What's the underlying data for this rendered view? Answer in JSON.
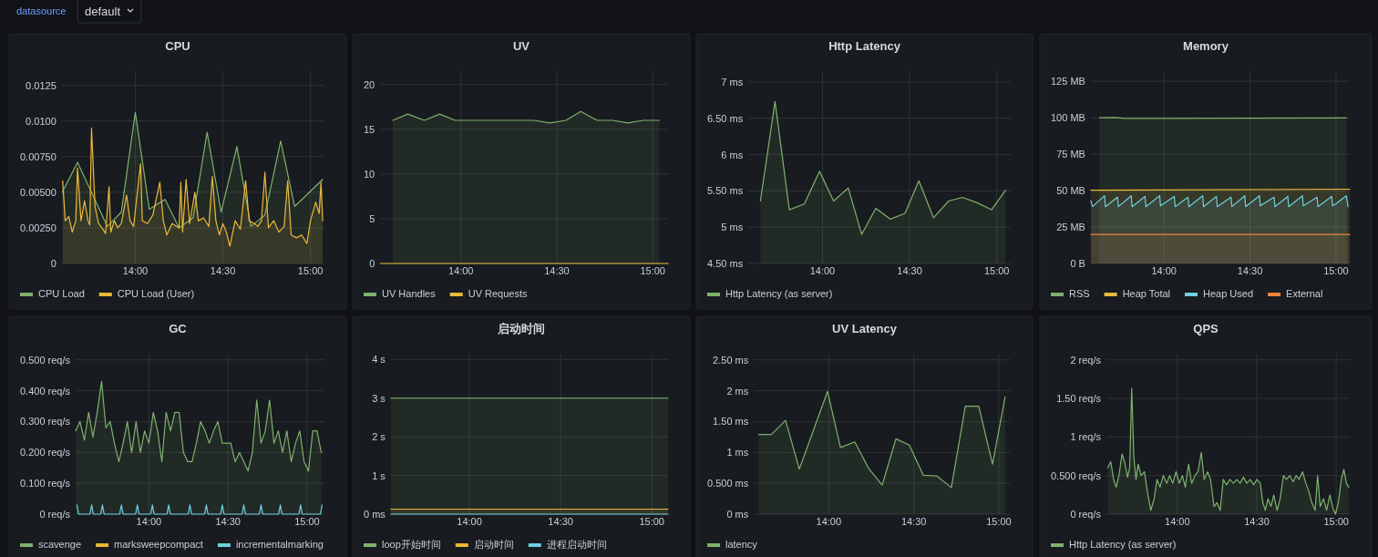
{
  "chart_data": [
    {
      "type": "other",
      "annotations": [
        "datasource",
        "default"
      ]
    },
    {
      "type": "area",
      "title": "CPU",
      "xlim": [
        13.58,
        15.08
      ],
      "ylim": [
        0,
        0.0135
      ],
      "grid": true,
      "legend": "bottom",
      "xticks": [
        {
          "value": 14,
          "label": "14:00"
        },
        {
          "value": 14.5,
          "label": "14:30"
        },
        {
          "value": 15,
          "label": "15:00"
        }
      ],
      "yticks": [
        0,
        {
          "value": 0.0025,
          "label": "0.00250"
        },
        {
          "value": 0.005,
          "label": "0.00500"
        },
        {
          "value": 0.0075,
          "label": "0.00750"
        },
        {
          "value": 0.01,
          "label": "0.0100"
        },
        0.0125
      ],
      "series": [
        {
          "name": "CPU Load",
          "color": "#7eb26d",
          "x": [
            13.583,
            13.67,
            13.84,
            13.92,
            14.0,
            14.08,
            14.17,
            14.25,
            14.33,
            14.41,
            14.49,
            14.58,
            14.66,
            14.74,
            14.83,
            14.91,
            15.07
          ],
          "values": [
            0.005,
            0.0071,
            0.0026,
            0.0036,
            0.0106,
            0.0038,
            0.0045,
            0.0025,
            0.0032,
            0.0092,
            0.0036,
            0.0082,
            0.0026,
            0.0034,
            0.0086,
            0.004,
            0.0059
          ]
        },
        {
          "name": "CPU Load (User)",
          "color": "#eab839",
          "x": [
            13.585,
            13.6,
            13.62,
            13.64,
            13.66,
            13.67,
            13.69,
            13.71,
            13.73,
            13.74,
            13.75,
            13.77,
            13.79,
            13.81,
            13.83,
            13.85,
            13.86,
            13.88,
            13.9,
            13.92,
            13.95,
            13.97,
            13.99,
            14.03,
            14.04,
            14.07,
            14.1,
            14.14,
            14.16,
            14.18,
            14.21,
            14.25,
            14.26,
            14.27,
            14.29,
            14.31,
            14.34,
            14.36,
            14.39,
            14.42,
            14.44,
            14.46,
            14.48,
            14.5,
            14.52,
            14.54,
            14.57,
            14.6,
            14.63,
            14.65,
            14.68,
            14.7,
            14.72,
            14.74,
            14.76,
            14.79,
            14.82,
            14.85,
            14.87,
            14.89,
            14.92,
            14.95,
            14.98,
            15.0,
            15.03,
            15.05,
            15.06,
            15.07
          ],
          "values": [
            0.0058,
            0.003,
            0.0033,
            0.0022,
            0.003,
            0.0067,
            0.003,
            0.0044,
            0.003,
            0.0027,
            0.0095,
            0.004,
            0.0028,
            0.0025,
            0.0021,
            0.0054,
            0.0022,
            0.003,
            0.0025,
            0.0028,
            0.0048,
            0.003,
            0.0026,
            0.007,
            0.003,
            0.0028,
            0.0034,
            0.0057,
            0.003,
            0.002,
            0.0028,
            0.0025,
            0.0057,
            0.0022,
            0.0059,
            0.0028,
            0.005,
            0.003,
            0.0032,
            0.0026,
            0.0061,
            0.003,
            0.002,
            0.0028,
            0.0022,
            0.0012,
            0.003,
            0.0024,
            0.0058,
            0.003,
            0.0028,
            0.0026,
            0.003,
            0.0064,
            0.0025,
            0.003,
            0.0022,
            0.0026,
            0.0058,
            0.002,
            0.0018,
            0.002,
            0.0014,
            0.003,
            0.0043,
            0.0035,
            0.0057,
            0.003
          ]
        }
      ]
    },
    {
      "type": "area",
      "title": "UV",
      "xlim": [
        13.58,
        15.08
      ],
      "ylim": [
        0,
        21.5
      ],
      "grid": true,
      "legend": "bottom",
      "xticks": [
        {
          "value": 14,
          "label": "14:00"
        },
        {
          "value": 14.5,
          "label": "14:30"
        },
        {
          "value": 15,
          "label": "15:00"
        }
      ],
      "yticks": [
        0,
        5,
        10,
        15,
        20
      ],
      "series": [
        {
          "name": "UV Handles",
          "color": "#7eb26d",
          "x": [
            13.645,
            13.723,
            13.81,
            13.89,
            13.97,
            14.38,
            14.465,
            14.548,
            14.625,
            14.71,
            14.79,
            14.87,
            14.95,
            15.035
          ],
          "values": [
            16.0,
            16.7,
            16.0,
            16.7,
            16.0,
            16.0,
            15.7,
            16.0,
            17.0,
            16.0,
            16.0,
            15.7,
            16.0,
            16.0
          ]
        },
        {
          "name": "UV Requests",
          "color": "#eab839",
          "type": "line",
          "x": [
            13.58,
            15.08
          ],
          "values": [
            0,
            0
          ]
        }
      ]
    },
    {
      "type": "area",
      "title": "Http Latency",
      "xlim": [
        13.575,
        15.08
      ],
      "ylim": [
        4.5,
        7.15
      ],
      "grid": true,
      "legend": "bottom",
      "xticks": [
        {
          "value": 14,
          "label": "14:00"
        },
        {
          "value": 14.5,
          "label": "14:30"
        },
        {
          "value": 15,
          "label": "15:00"
        }
      ],
      "yticks": [
        {
          "value": 4.5,
          "label": "4.50 ms"
        },
        {
          "value": 5,
          "label": "5 ms"
        },
        {
          "value": 5.5,
          "label": "5.50 ms"
        },
        {
          "value": 6,
          "label": "6 ms"
        },
        {
          "value": 6.5,
          "label": "6.50 ms"
        },
        {
          "value": 7,
          "label": "7 ms"
        }
      ],
      "series": [
        {
          "name": "Http Latency (as server)",
          "color": "#7eb26d",
          "x": [
            13.644,
            13.728,
            13.81,
            13.896,
            13.983,
            14.064,
            14.148,
            14.225,
            14.306,
            14.39,
            14.474,
            14.553,
            14.637,
            14.724,
            14.803,
            14.884,
            14.97,
            15.05
          ],
          "values": [
            5.36,
            6.73,
            5.24,
            5.32,
            5.77,
            5.36,
            5.54,
            4.9,
            5.26,
            5.11,
            5.19,
            5.64,
            5.13,
            5.36,
            5.41,
            5.34,
            5.24,
            5.51
          ]
        }
      ]
    },
    {
      "type": "area",
      "title": "Memory",
      "xlim": [
        13.575,
        15.08
      ],
      "ylim": [
        0,
        132
      ],
      "grid": true,
      "legend": "bottom",
      "xticks": [
        {
          "value": 14,
          "label": "14:00"
        },
        {
          "value": 14.5,
          "label": "14:30"
        },
        {
          "value": 15,
          "label": "15:00"
        }
      ],
      "yticks": [
        {
          "value": 0,
          "label": "0 B"
        },
        {
          "value": 25,
          "label": "25 MB"
        },
        {
          "value": 50,
          "label": "50 MB"
        },
        {
          "value": 75,
          "label": "75 MB"
        },
        {
          "value": 100,
          "label": "100 MB"
        },
        {
          "value": 125,
          "label": "125 MB"
        }
      ],
      "series": [
        {
          "name": "RSS",
          "color": "#7eb26d",
          "x": [
            13.625,
            13.72,
            13.77,
            15.06
          ],
          "values": [
            100,
            100.2,
            99.5,
            99.8
          ]
        },
        {
          "name": "Heap Total",
          "color": "#eab839",
          "x": [
            13.575,
            15.08
          ],
          "values": [
            50.3,
            51
          ]
        },
        {
          "name": "Heap Used",
          "color": "#6ed0e0",
          "x": [
            13.575,
            13.585,
            13.655,
            13.66,
            13.73,
            13.735,
            13.81,
            13.815,
            13.89,
            13.895,
            13.975,
            13.98,
            14.06,
            14.065,
            14.14,
            14.145,
            14.225,
            14.23,
            14.305,
            14.31,
            14.39,
            14.395,
            14.47,
            14.475,
            14.555,
            14.56,
            14.64,
            14.645,
            14.72,
            14.725,
            14.805,
            14.81,
            14.89,
            14.895,
            14.975,
            14.98,
            15.0,
            15.06,
            15.07
          ],
          "values": [
            43,
            39,
            46.5,
            39,
            45.5,
            39,
            46.5,
            39,
            46,
            39,
            46.5,
            39.5,
            46,
            39,
            45.5,
            39,
            46.5,
            39,
            46,
            39,
            45.5,
            39,
            46.5,
            39,
            46.5,
            39.5,
            45.5,
            39,
            46,
            39,
            46.5,
            39.5,
            45.5,
            39,
            46,
            39.5,
            41,
            46.5,
            39
          ]
        },
        {
          "name": "External",
          "color": "#ef843c",
          "x": [
            13.575,
            15.08
          ],
          "values": [
            20,
            20
          ]
        }
      ]
    },
    {
      "type": "area",
      "title": "GC",
      "xlim": [
        13.537,
        15.11
      ],
      "ylim": [
        0,
        0.52
      ],
      "grid": true,
      "legend": "bottom",
      "xticks": [
        {
          "value": 14,
          "label": "14:00"
        },
        {
          "value": 14.5,
          "label": "14:30"
        },
        {
          "value": 15,
          "label": "15:00"
        }
      ],
      "yticks": [
        {
          "value": 0,
          "label": "0 req/s"
        },
        {
          "value": 0.1,
          "label": "0.100 req/s"
        },
        {
          "value": 0.2,
          "label": "0.200 req/s"
        },
        {
          "value": 0.3,
          "label": "0.300 req/s"
        },
        {
          "value": 0.4,
          "label": "0.400 req/s"
        },
        {
          "value": 0.5,
          "label": "0.500 req/s"
        }
      ],
      "series": [
        {
          "name": "scavenge",
          "color": "#7eb26d",
          "x": [
            13.537,
            13.564,
            13.592,
            13.619,
            13.646,
            13.673,
            13.701,
            13.728,
            13.755,
            13.782,
            13.81,
            13.837,
            13.864,
            13.891,
            13.919,
            13.946,
            13.973,
            14.0,
            14.028,
            14.055,
            14.082,
            14.109,
            14.137,
            14.164,
            14.191,
            14.218,
            14.246,
            14.273,
            14.3,
            14.327,
            14.355,
            14.382,
            14.409,
            14.436,
            14.464,
            14.491,
            14.518,
            14.545,
            14.573,
            14.6,
            14.627,
            14.654,
            14.682,
            14.709,
            14.736,
            14.763,
            14.791,
            14.818,
            14.845,
            14.872,
            14.9,
            14.927,
            14.954,
            14.981,
            15.009,
            15.036,
            15.063,
            15.09
          ],
          "values": [
            0.27,
            0.3,
            0.24,
            0.33,
            0.25,
            0.33,
            0.43,
            0.28,
            0.3,
            0.23,
            0.17,
            0.23,
            0.3,
            0.2,
            0.3,
            0.2,
            0.27,
            0.23,
            0.33,
            0.27,
            0.17,
            0.33,
            0.27,
            0.33,
            0.33,
            0.2,
            0.17,
            0.17,
            0.23,
            0.3,
            0.27,
            0.23,
            0.27,
            0.3,
            0.23,
            0.23,
            0.23,
            0.17,
            0.2,
            0.17,
            0.14,
            0.2,
            0.37,
            0.23,
            0.27,
            0.37,
            0.23,
            0.27,
            0.2,
            0.27,
            0.17,
            0.23,
            0.27,
            0.17,
            0.14,
            0.27,
            0.27,
            0.2
          ]
        },
        {
          "name": "marksweepcompact",
          "color": "#eab839"
        },
        {
          "name": "incrementalmarking",
          "color": "#6ed0e0",
          "x": [
            13.545,
            13.556,
            13.627,
            13.638,
            13.649,
            13.695,
            13.706,
            13.717,
            13.815,
            13.826,
            13.837,
            13.916,
            13.927,
            13.938,
            14.011,
            14.022,
            14.033,
            14.114,
            14.125,
            14.136,
            14.248,
            14.259,
            14.27,
            14.352,
            14.363,
            14.374,
            14.453,
            14.464,
            14.475,
            14.589,
            14.6,
            14.611,
            14.698,
            14.709,
            14.72,
            14.82,
            14.831,
            14.842,
            14.948,
            14.959,
            14.97,
            15.084,
            15.095
          ],
          "values": [
            0.03,
            0,
            0,
            0.03,
            0,
            0,
            0.03,
            0,
            0,
            0.03,
            0,
            0,
            0.03,
            0,
            0,
            0.03,
            0,
            0,
            0.03,
            0,
            0,
            0.03,
            0,
            0,
            0.03,
            0,
            0,
            0.03,
            0,
            0,
            0.03,
            0,
            0,
            0.03,
            0,
            0,
            0.03,
            0,
            0,
            0.03,
            0,
            0,
            0.03
          ]
        }
      ]
    },
    {
      "type": "area",
      "title": "启动时间",
      "xlim": [
        13.569,
        15.089
      ],
      "ylim": [
        0,
        4.15
      ],
      "grid": true,
      "legend": "bottom",
      "xticks": [
        {
          "value": 14,
          "label": "14:00"
        },
        {
          "value": 14.5,
          "label": "14:30"
        },
        {
          "value": 15,
          "label": "15:00"
        }
      ],
      "yticks": [
        {
          "value": 0,
          "label": "0 ms"
        },
        {
          "value": 1,
          "label": "1 s"
        },
        {
          "value": 2,
          "label": "2 s"
        },
        {
          "value": 3,
          "label": "3 s"
        },
        {
          "value": 4,
          "label": "4 s"
        }
      ],
      "series": [
        {
          "name": "loop开始时间",
          "color": "#7eb26d",
          "x": [
            13.569,
            15.089
          ],
          "values": [
            3,
            3
          ]
        },
        {
          "name": "启动时间",
          "color": "#eab839",
          "x": [
            13.569,
            15.089
          ],
          "values": [
            0.13,
            0.13
          ]
        },
        {
          "name": "进程启动时间",
          "color": "#6ed0e0",
          "type": "line",
          "x": [
            13.569,
            15.089
          ],
          "values": [
            0,
            0
          ]
        }
      ]
    },
    {
      "type": "area",
      "title": "UV Latency",
      "xlim": [
        13.56,
        15.07
      ],
      "ylim": [
        0,
        2.6
      ],
      "grid": true,
      "legend": "bottom",
      "xticks": [
        {
          "value": 14,
          "label": "14:00"
        },
        {
          "value": 14.5,
          "label": "14:30"
        },
        {
          "value": 15,
          "label": "15:00"
        }
      ],
      "yticks": [
        {
          "value": 0,
          "label": "0 ms"
        },
        {
          "value": 0.5,
          "label": "0.500 ms"
        },
        {
          "value": 1,
          "label": "1 ms"
        },
        {
          "value": 1.5,
          "label": "1.50 ms"
        },
        {
          "value": 2,
          "label": "2 ms"
        },
        {
          "value": 2.5,
          "label": "2.50 ms"
        }
      ],
      "series": [
        {
          "name": "latency",
          "color": "#7eb26d",
          "x": [
            13.588,
            13.662,
            13.746,
            13.827,
            13.906,
            13.993,
            14.069,
            14.153,
            14.235,
            14.314,
            14.395,
            14.474,
            14.556,
            14.635,
            14.721,
            14.803,
            14.882,
            14.963,
            15.037
          ],
          "values": [
            1.29,
            1.29,
            1.52,
            0.73,
            1.33,
            1.99,
            1.08,
            1.17,
            0.74,
            0.47,
            1.22,
            1.12,
            0.63,
            0.62,
            0.43,
            1.75,
            1.75,
            0.81,
            1.9
          ]
        }
      ]
    },
    {
      "type": "area",
      "title": "QPS",
      "xlim": [
        13.554,
        15.085
      ],
      "ylim": [
        0,
        2.08
      ],
      "grid": true,
      "legend": "bottom",
      "xticks": [
        {
          "value": 14,
          "label": "14:00"
        },
        {
          "value": 14.5,
          "label": "14:30"
        },
        {
          "value": 15,
          "label": "15:00"
        }
      ],
      "yticks": [
        {
          "value": 0,
          "label": "0 req/s"
        },
        {
          "value": 0.5,
          "label": "0.500 req/s"
        },
        {
          "value": 1,
          "label": "1 req/s"
        },
        {
          "value": 1.5,
          "label": "1.50 req/s"
        },
        {
          "value": 2,
          "label": "2 req/s"
        }
      ],
      "series": [
        {
          "name": "Http Latency (as server)",
          "color": "#7eb26d",
          "x": [
            13.562,
            13.581,
            13.599,
            13.615,
            13.634,
            13.652,
            13.668,
            13.687,
            13.7,
            13.713,
            13.726,
            13.74,
            13.753,
            13.772,
            13.793,
            13.811,
            13.833,
            13.854,
            13.872,
            13.891,
            13.912,
            13.933,
            13.952,
            13.971,
            13.992,
            14.013,
            14.032,
            14.05,
            14.071,
            14.09,
            14.111,
            14.13,
            14.151,
            14.169,
            14.191,
            14.209,
            14.231,
            14.249,
            14.27,
            14.289,
            14.31,
            14.331,
            14.353,
            14.374,
            14.395,
            14.416,
            14.437,
            14.459,
            14.48,
            14.501,
            14.522,
            14.538,
            14.554,
            14.57,
            14.589,
            14.607,
            14.628,
            14.647,
            14.668,
            14.687,
            14.708,
            14.729,
            14.748,
            14.766,
            14.788,
            14.809,
            14.827,
            14.846,
            14.867,
            14.883,
            14.899,
            14.92,
            14.939,
            14.96,
            14.979,
            14.995,
            15.013,
            15.032,
            15.048,
            15.064,
            15.079
          ],
          "values": [
            0.6,
            0.68,
            0.45,
            0.35,
            0.52,
            0.78,
            0.68,
            0.48,
            0.6,
            1.63,
            0.75,
            0.45,
            0.65,
            0.5,
            0.55,
            0.3,
            0.05,
            0.2,
            0.45,
            0.35,
            0.5,
            0.4,
            0.5,
            0.4,
            0.55,
            0.4,
            0.5,
            0.35,
            0.65,
            0.4,
            0.5,
            0.55,
            0.8,
            0.45,
            0.55,
            0.45,
            0.1,
            0.15,
            0.05,
            0.45,
            0.38,
            0.45,
            0.4,
            0.45,
            0.4,
            0.48,
            0.4,
            0.45,
            0.38,
            0.45,
            0.4,
            0.15,
            0.05,
            0.2,
            0.1,
            0.25,
            0.05,
            0.2,
            0.5,
            0.45,
            0.5,
            0.42,
            0.5,
            0.45,
            0.55,
            0.4,
            0.3,
            0.15,
            0.05,
            0.5,
            0.1,
            0.2,
            0.05,
            0.25,
            0.08,
            0,
            0.15,
            0.45,
            0.58,
            0.4,
            0.35
          ]
        }
      ]
    }
  ]
}
